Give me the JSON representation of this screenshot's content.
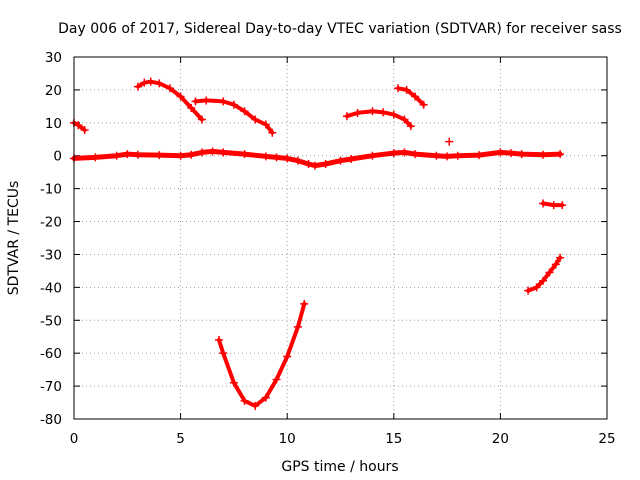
{
  "chart_data": {
    "type": "scatter",
    "title": "Day 006 of 2017, Sidereal Day-to-day VTEC variation (SDTVAR) for receiver sass",
    "xlabel": "GPS time / hours",
    "ylabel": "SDTVAR / TECUs",
    "xlim": [
      0,
      25
    ],
    "ylim": [
      -80,
      30
    ],
    "xticks": [
      0,
      5,
      10,
      15,
      20,
      25
    ],
    "yticks": [
      30,
      20,
      10,
      0,
      -10,
      -20,
      -30,
      -40,
      -50,
      -60,
      -70,
      -80
    ],
    "grid": true,
    "marker": "+",
    "color": "#ff0000",
    "series": [
      {
        "name": "near-zero trace",
        "width": 5,
        "x": [
          0.0,
          1.0,
          2.0,
          2.5,
          3.0,
          4.0,
          5.0,
          5.5,
          6.0,
          6.5,
          7.0,
          8.0,
          9.0,
          9.5,
          10.0,
          10.5,
          11.0,
          11.3,
          11.8,
          12.5,
          13.0,
          14.0,
          15.0,
          15.5,
          16.0,
          17.0,
          17.5,
          18.0,
          19.0,
          20.0,
          20.5,
          21.0,
          22.0,
          22.8
        ],
        "y": [
          -0.8,
          -0.5,
          0.0,
          0.5,
          0.3,
          0.2,
          0.0,
          0.3,
          1.0,
          1.3,
          1.0,
          0.5,
          -0.2,
          -0.5,
          -0.8,
          -1.5,
          -2.5,
          -3.0,
          -2.5,
          -1.5,
          -1.0,
          0.0,
          0.8,
          1.0,
          0.5,
          0.0,
          -0.2,
          0.0,
          0.2,
          1.0,
          0.8,
          0.5,
          0.3,
          0.5
        ]
      },
      {
        "name": "arc a",
        "width": 4,
        "x": [
          0.0,
          0.2,
          0.5
        ],
        "y": [
          10.0,
          9.3,
          7.8
        ]
      },
      {
        "name": "arc b",
        "width": 4,
        "x": [
          3.0,
          3.3,
          3.6,
          4.0,
          4.5,
          5.0,
          5.5,
          6.0
        ],
        "y": [
          21.0,
          22.2,
          22.5,
          22.0,
          20.5,
          18.0,
          14.5,
          11.0
        ]
      },
      {
        "name": "arc c",
        "width": 4,
        "x": [
          5.7,
          6.2,
          7.0,
          7.5,
          8.0,
          8.5,
          9.0,
          9.3
        ],
        "y": [
          16.5,
          16.8,
          16.5,
          15.5,
          13.5,
          11.0,
          9.5,
          7.0
        ]
      },
      {
        "name": "arc d",
        "width": 4,
        "x": [
          12.8,
          13.3,
          14.0,
          14.5,
          15.0,
          15.5,
          15.8
        ],
        "y": [
          12.0,
          13.0,
          13.5,
          13.2,
          12.5,
          11.0,
          9.0
        ]
      },
      {
        "name": "arc e",
        "width": 4,
        "x": [
          15.2,
          15.6,
          16.0,
          16.4
        ],
        "y": [
          20.5,
          20.0,
          18.0,
          15.5
        ]
      },
      {
        "name": "isolated point",
        "width": 0,
        "x": [
          17.6
        ],
        "y": [
          4.3
        ]
      },
      {
        "name": "dip",
        "width": 4,
        "x": [
          6.8,
          7.0,
          7.5,
          8.0,
          8.5,
          9.0,
          9.5,
          10.0,
          10.5,
          10.8
        ],
        "y": [
          -56.0,
          -60.0,
          -69.0,
          -74.5,
          -76.0,
          -73.5,
          -68.0,
          -61.0,
          -52.0,
          -45.0
        ]
      },
      {
        "name": "late flat",
        "width": 4,
        "x": [
          22.0,
          22.5,
          22.9
        ],
        "y": [
          -14.5,
          -15.0,
          -15.0
        ]
      },
      {
        "name": "late rise",
        "width": 4,
        "x": [
          21.3,
          21.7,
          22.0,
          22.3,
          22.6,
          22.8
        ],
        "y": [
          -41.0,
          -40.0,
          -38.0,
          -35.5,
          -33.0,
          -31.0
        ]
      }
    ]
  }
}
